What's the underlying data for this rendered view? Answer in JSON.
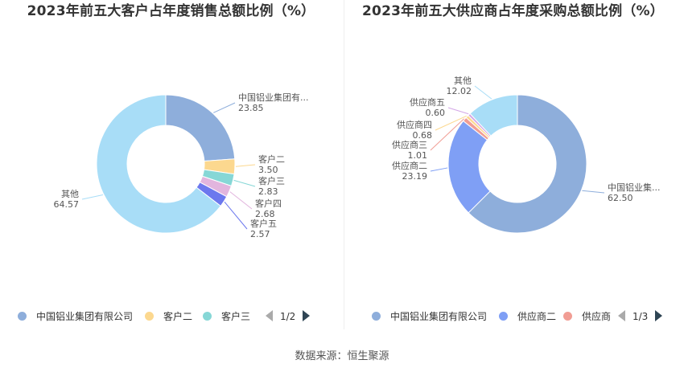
{
  "chart_data": [
    {
      "type": "pie",
      "title": "2023年前五大客户占年度销售总额比例（%）",
      "series": [
        {
          "name": "中国铝业集团有限公司",
          "label": "中国铝业集团有...",
          "value": 23.85,
          "value_text": "23.85",
          "color": "#8eaedb"
        },
        {
          "name": "客户二",
          "label": "客户二",
          "value": 3.5,
          "value_text": "3.50",
          "color": "#fcd88f"
        },
        {
          "name": "客户三",
          "label": "客户三",
          "value": 2.83,
          "value_text": "2.83",
          "color": "#86d7d6"
        },
        {
          "name": "客户四",
          "label": "客户四",
          "value": 2.68,
          "value_text": "2.68",
          "color": "#e2b5de"
        },
        {
          "name": "客户五",
          "label": "客户五",
          "value": 2.57,
          "value_text": "2.57",
          "color": "#6c78ee"
        },
        {
          "name": "其他",
          "label": "其他",
          "value": 64.57,
          "value_text": "64.57",
          "color": "#a8ddf7"
        }
      ],
      "legend": {
        "items": [
          "中国铝业集团有限公司",
          "客户二",
          "客户三"
        ],
        "colors": [
          "#8eaedb",
          "#fcd88f",
          "#86d7d6"
        ],
        "page": "1/2",
        "placement": "bottom"
      }
    },
    {
      "type": "pie",
      "title": "2023年前五大供应商占年度采购总额比例（%）",
      "series": [
        {
          "name": "中国铝业集团有限公司",
          "label": "中国铝业集...",
          "value": 62.5,
          "value_text": "62.50",
          "color": "#8eaedb"
        },
        {
          "name": "供应商二",
          "label": "供应商二",
          "value": 23.19,
          "value_text": "23.19",
          "color": "#7f9ff5"
        },
        {
          "name": "供应商三",
          "label": "供应商三",
          "value": 1.01,
          "value_text": "1.01",
          "color": "#f19d94"
        },
        {
          "name": "供应商四",
          "label": "供应商四",
          "value": 0.68,
          "value_text": "0.68",
          "color": "#fcd88f"
        },
        {
          "name": "供应商五",
          "label": "供应商五",
          "value": 0.6,
          "value_text": "0.60",
          "color": "#d3a6e6"
        },
        {
          "name": "其他",
          "label": "其他",
          "value": 12.02,
          "value_text": "12.02",
          "color": "#a8ddf7"
        }
      ],
      "legend": {
        "items": [
          "中国铝业集团有限公司",
          "供应商二",
          "供应商"
        ],
        "colors": [
          "#8eaedb",
          "#7f9ff5",
          "#f19d94"
        ],
        "page": "1/3",
        "placement": "bottom"
      }
    }
  ],
  "source": "数据来源：恒生聚源"
}
